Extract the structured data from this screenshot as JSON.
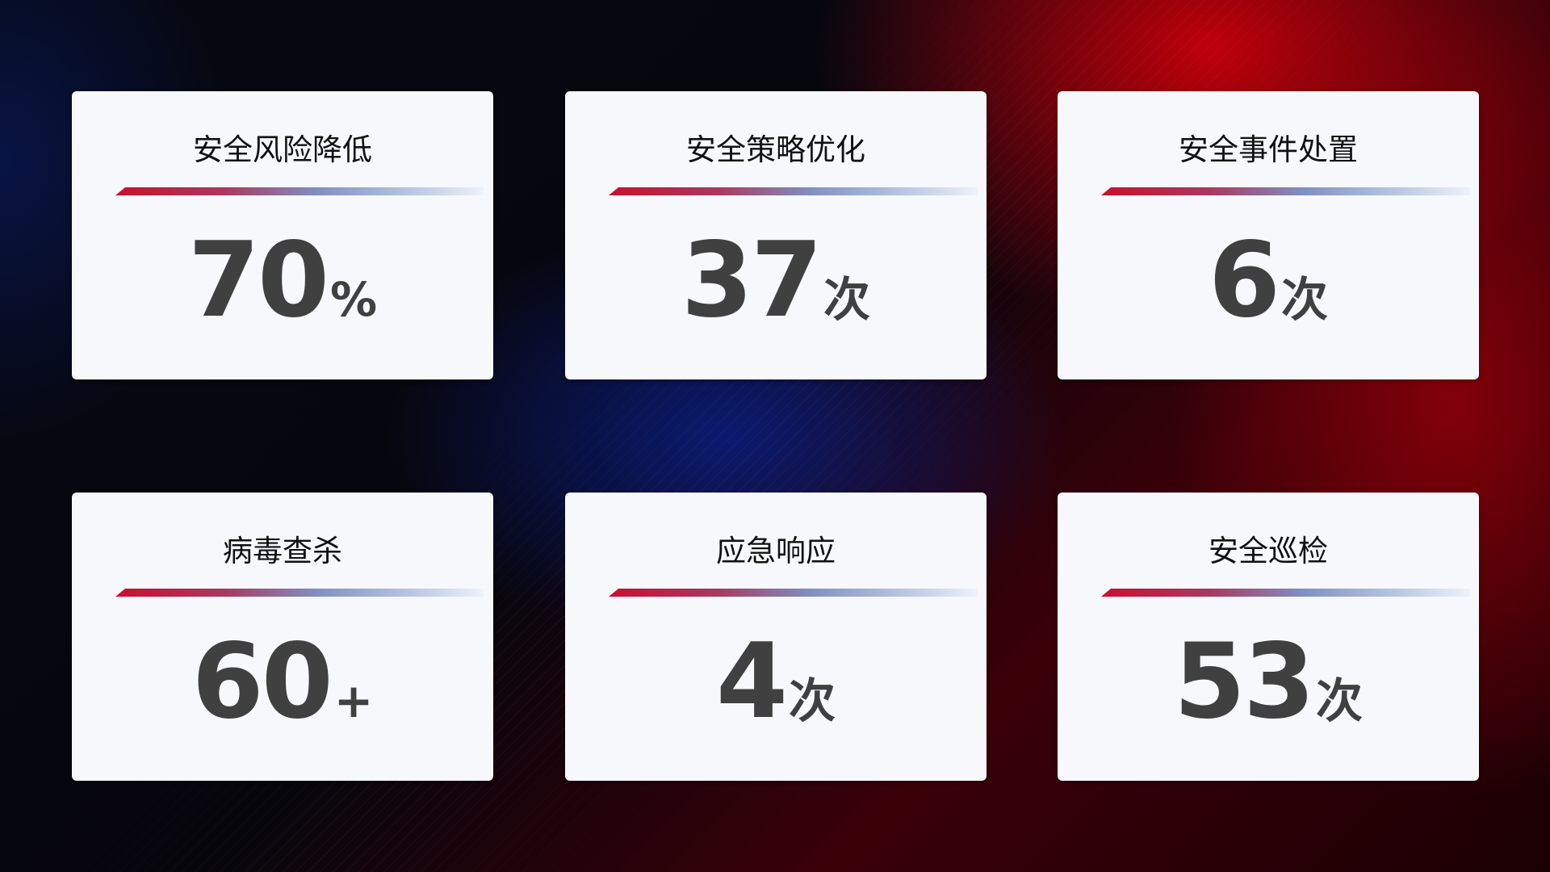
{
  "cards": [
    {
      "title": "安全风险降低",
      "value": "70",
      "unit": "%"
    },
    {
      "title": "安全策略优化",
      "value": "37",
      "unit": "次"
    },
    {
      "title": "安全事件处置",
      "value": "6",
      "unit": "次"
    },
    {
      "title": "病毒查杀",
      "value": "60",
      "unit": "+"
    },
    {
      "title": "应急响应",
      "value": "4",
      "unit": "次"
    },
    {
      "title": "安全巡检",
      "value": "53",
      "unit": "次"
    }
  ],
  "colors": {
    "accent_red": "#c8102e",
    "accent_blue": "#7f90c4",
    "card_bg": "#f6f8fc",
    "value_text": "#404040"
  }
}
